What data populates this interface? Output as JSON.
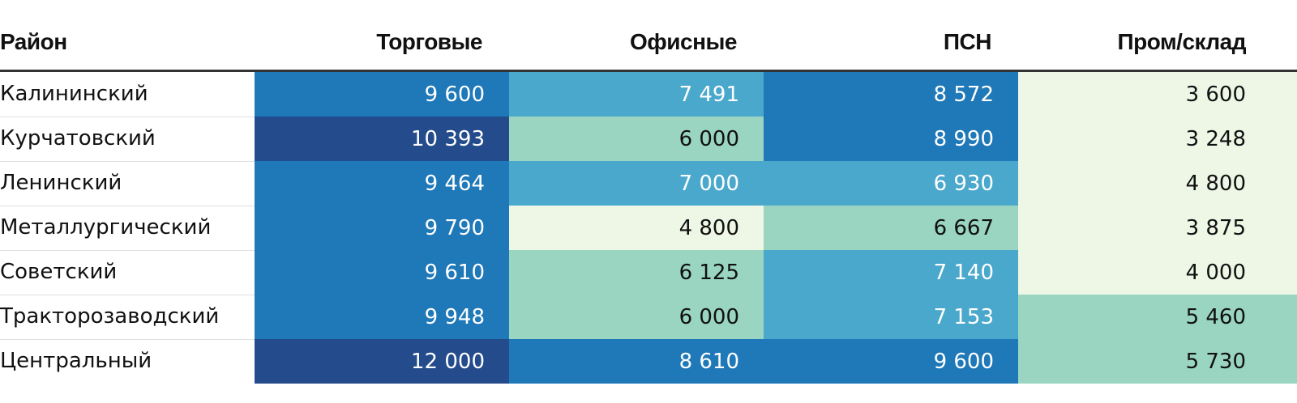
{
  "chart_data": {
    "type": "table",
    "columns": [
      "Район",
      "Торговые",
      "Офисные",
      "ПСН",
      "Пром/склад"
    ],
    "rows": [
      {
        "district": "Калининский",
        "values": [
          "9 600",
          "7 491",
          "8 572",
          "3 600"
        ]
      },
      {
        "district": "Курчатовский",
        "values": [
          "10 393",
          "6 000",
          "8 990",
          "3 248"
        ]
      },
      {
        "district": "Ленинский",
        "values": [
          "9 464",
          "7 000",
          "6 930",
          "4 800"
        ]
      },
      {
        "district": "Металлургический",
        "values": [
          "9 790",
          "4 800",
          "6 667",
          "3 875"
        ]
      },
      {
        "district": "Советский",
        "values": [
          "9 610",
          "6 125",
          "7 140",
          "4 000"
        ]
      },
      {
        "district": "Тракторозаводский",
        "values": [
          "9 948",
          "6 000",
          "7 153",
          "5 460"
        ]
      },
      {
        "district": "Центральный",
        "values": [
          "12 000",
          "8 610",
          "9 600",
          "5 730"
        ]
      }
    ],
    "color_scale": {
      "0": "#eef7e6",
      "1": "#99d5c0",
      "2": "#4aa8cc",
      "3": "#1f78b8",
      "4": "#244c8c"
    },
    "cell_levels": [
      [
        3,
        2,
        3,
        0
      ],
      [
        4,
        1,
        3,
        0
      ],
      [
        3,
        2,
        2,
        0
      ],
      [
        3,
        0,
        1,
        0
      ],
      [
        3,
        1,
        2,
        0
      ],
      [
        3,
        1,
        2,
        1
      ],
      [
        4,
        3,
        3,
        1
      ]
    ],
    "text_color_light": "#ffffff",
    "text_color_dark": "#111111"
  }
}
